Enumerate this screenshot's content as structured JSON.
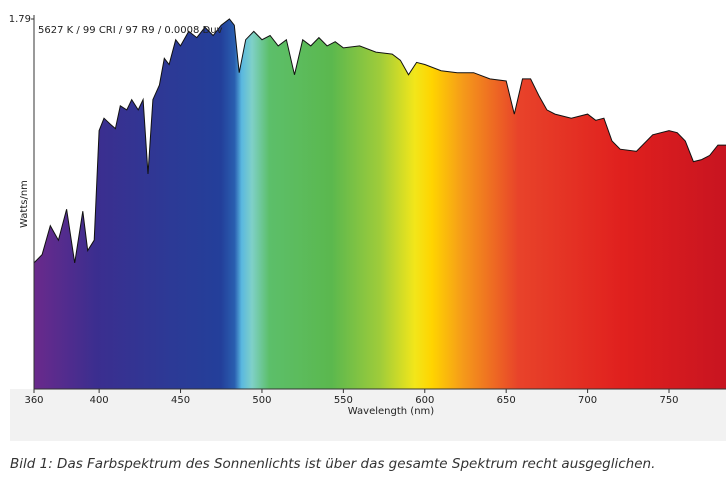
{
  "chart_data": {
    "type": "area",
    "annotation": "5627 K / 99 CRI / 97 R9 / 0.0008 Duv",
    "x_label": "Wavelength (nm)",
    "y_label": "Watts/nm",
    "x": [
      360,
      365,
      370,
      375,
      380,
      385,
      390,
      393,
      397,
      400,
      403,
      407,
      410,
      413,
      417,
      420,
      424,
      427,
      430,
      433,
      437,
      440,
      443,
      447,
      450,
      455,
      460,
      465,
      470,
      475,
      480,
      483,
      486,
      490,
      495,
      500,
      505,
      510,
      515,
      520,
      525,
      530,
      535,
      540,
      545,
      550,
      560,
      570,
      580,
      585,
      590,
      595,
      600,
      610,
      620,
      630,
      640,
      650,
      655,
      660,
      665,
      670,
      675,
      680,
      690,
      700,
      705,
      710,
      715,
      720,
      730,
      740,
      750,
      755,
      760,
      765,
      770,
      775,
      780,
      785
    ],
    "values": [
      0.61,
      0.65,
      0.79,
      0.72,
      0.87,
      0.61,
      0.86,
      0.67,
      0.72,
      1.25,
      1.31,
      1.28,
      1.26,
      1.37,
      1.35,
      1.4,
      1.35,
      1.4,
      1.04,
      1.4,
      1.47,
      1.6,
      1.57,
      1.69,
      1.66,
      1.73,
      1.7,
      1.75,
      1.71,
      1.76,
      1.79,
      1.76,
      1.53,
      1.69,
      1.73,
      1.69,
      1.71,
      1.66,
      1.69,
      1.52,
      1.69,
      1.66,
      1.7,
      1.66,
      1.68,
      1.65,
      1.66,
      1.63,
      1.62,
      1.59,
      1.52,
      1.58,
      1.57,
      1.54,
      1.53,
      1.53,
      1.5,
      1.49,
      1.33,
      1.5,
      1.5,
      1.42,
      1.35,
      1.33,
      1.31,
      1.33,
      1.3,
      1.31,
      1.2,
      1.16,
      1.15,
      1.23,
      1.25,
      1.24,
      1.2,
      1.1,
      1.11,
      1.13,
      1.18,
      1.18
    ],
    "xlim": [
      360,
      785
    ],
    "ylim": [
      0,
      1.79
    ],
    "xticks": [
      360,
      400,
      450,
      500,
      550,
      600,
      650,
      700,
      750
    ],
    "yticks": [
      1.79
    ]
  },
  "caption": "Bild 1: Das Farbspektrum des Sonnenlichts ist über das gesamte Spektrum recht ausgeglichen."
}
